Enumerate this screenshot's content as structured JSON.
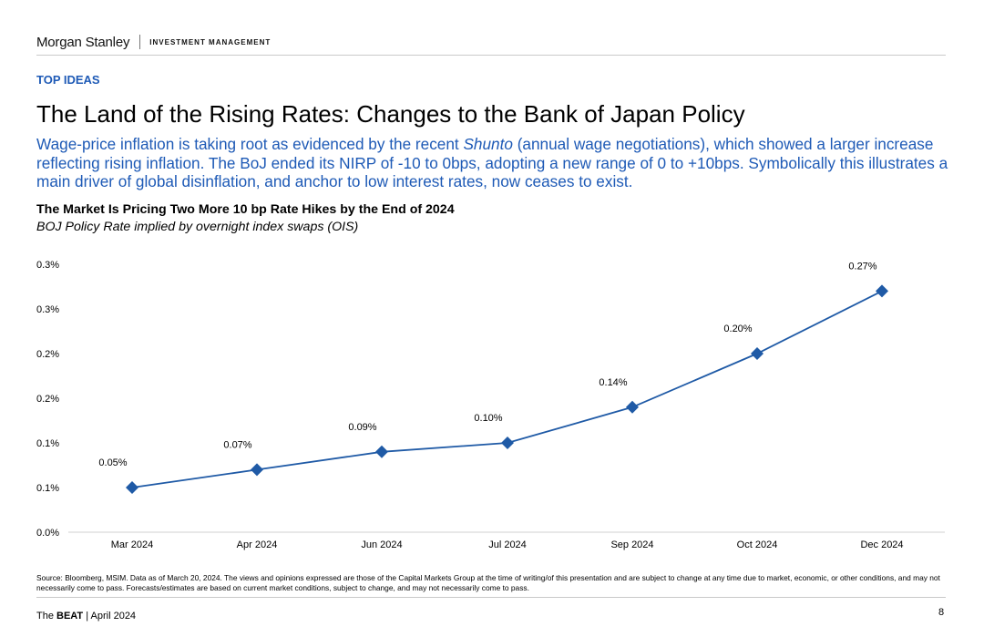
{
  "header": {
    "brand": "Morgan Stanley",
    "division": "INVESTMENT MANAGEMENT"
  },
  "section_label": "TOP IDEAS",
  "page_title": "The Land of the Rising Rates: Changes to the Bank of Japan Policy",
  "subtitle": {
    "before": "Wage-price inflation is taking root as evidenced by the recent ",
    "emphasis": "Shunto",
    "after": " (annual wage negotiations), which showed a larger increase reflecting rising inflation. The BoJ ended its NIRP of -10 to 0bps, adopting a new range of 0 to +10bps. Symbolically this illustrates a main driver of global disinflation, and anchor to low interest rates, now ceases to exist."
  },
  "chart_data": {
    "type": "line",
    "title": "The Market Is Pricing Two More 10 bp Rate Hikes by the End of 2024",
    "subtitle": "BOJ Policy Rate implied by overnight index swaps (OIS)",
    "categories": [
      "Mar 2024",
      "Apr 2024",
      "Jun 2024",
      "Jul 2024",
      "Sep 2024",
      "Oct 2024",
      "Dec 2024"
    ],
    "series": [
      {
        "name": "BOJ Policy Rate implied by OIS",
        "values": [
          0.05,
          0.07,
          0.09,
          0.1,
          0.14,
          0.2,
          0.27
        ],
        "labels": [
          "0.05%",
          "0.07%",
          "0.09%",
          "0.10%",
          "0.14%",
          "0.20%",
          "0.27%"
        ],
        "color": "#1f5aa6"
      }
    ],
    "ylim": [
      0,
      0.3
    ],
    "yticks": [
      0,
      0.05,
      0.1,
      0.15,
      0.2,
      0.25,
      0.3
    ],
    "ytick_labels": [
      "0.0%",
      "0.1%",
      "0.1%",
      "0.2%",
      "0.2%",
      "0.3%",
      "0.3%"
    ],
    "xlabel": "",
    "ylabel": "",
    "grid": false,
    "legend": "none"
  },
  "source_note": "Source: Bloomberg, MSIM. Data as of March 20, 2024. The views and opinions expressed are those of the Capital Markets Group at the time of writing/of this presentation and are subject to change at any time due to market, economic, or other conditions, and may not necessarily come to pass. Forecasts/estimates are based on current market conditions, subject to change, and may not necessarily come to pass.",
  "footer": {
    "prefix": "The ",
    "bold": "BEAT",
    "suffix": " | April 2024",
    "page": "8"
  }
}
